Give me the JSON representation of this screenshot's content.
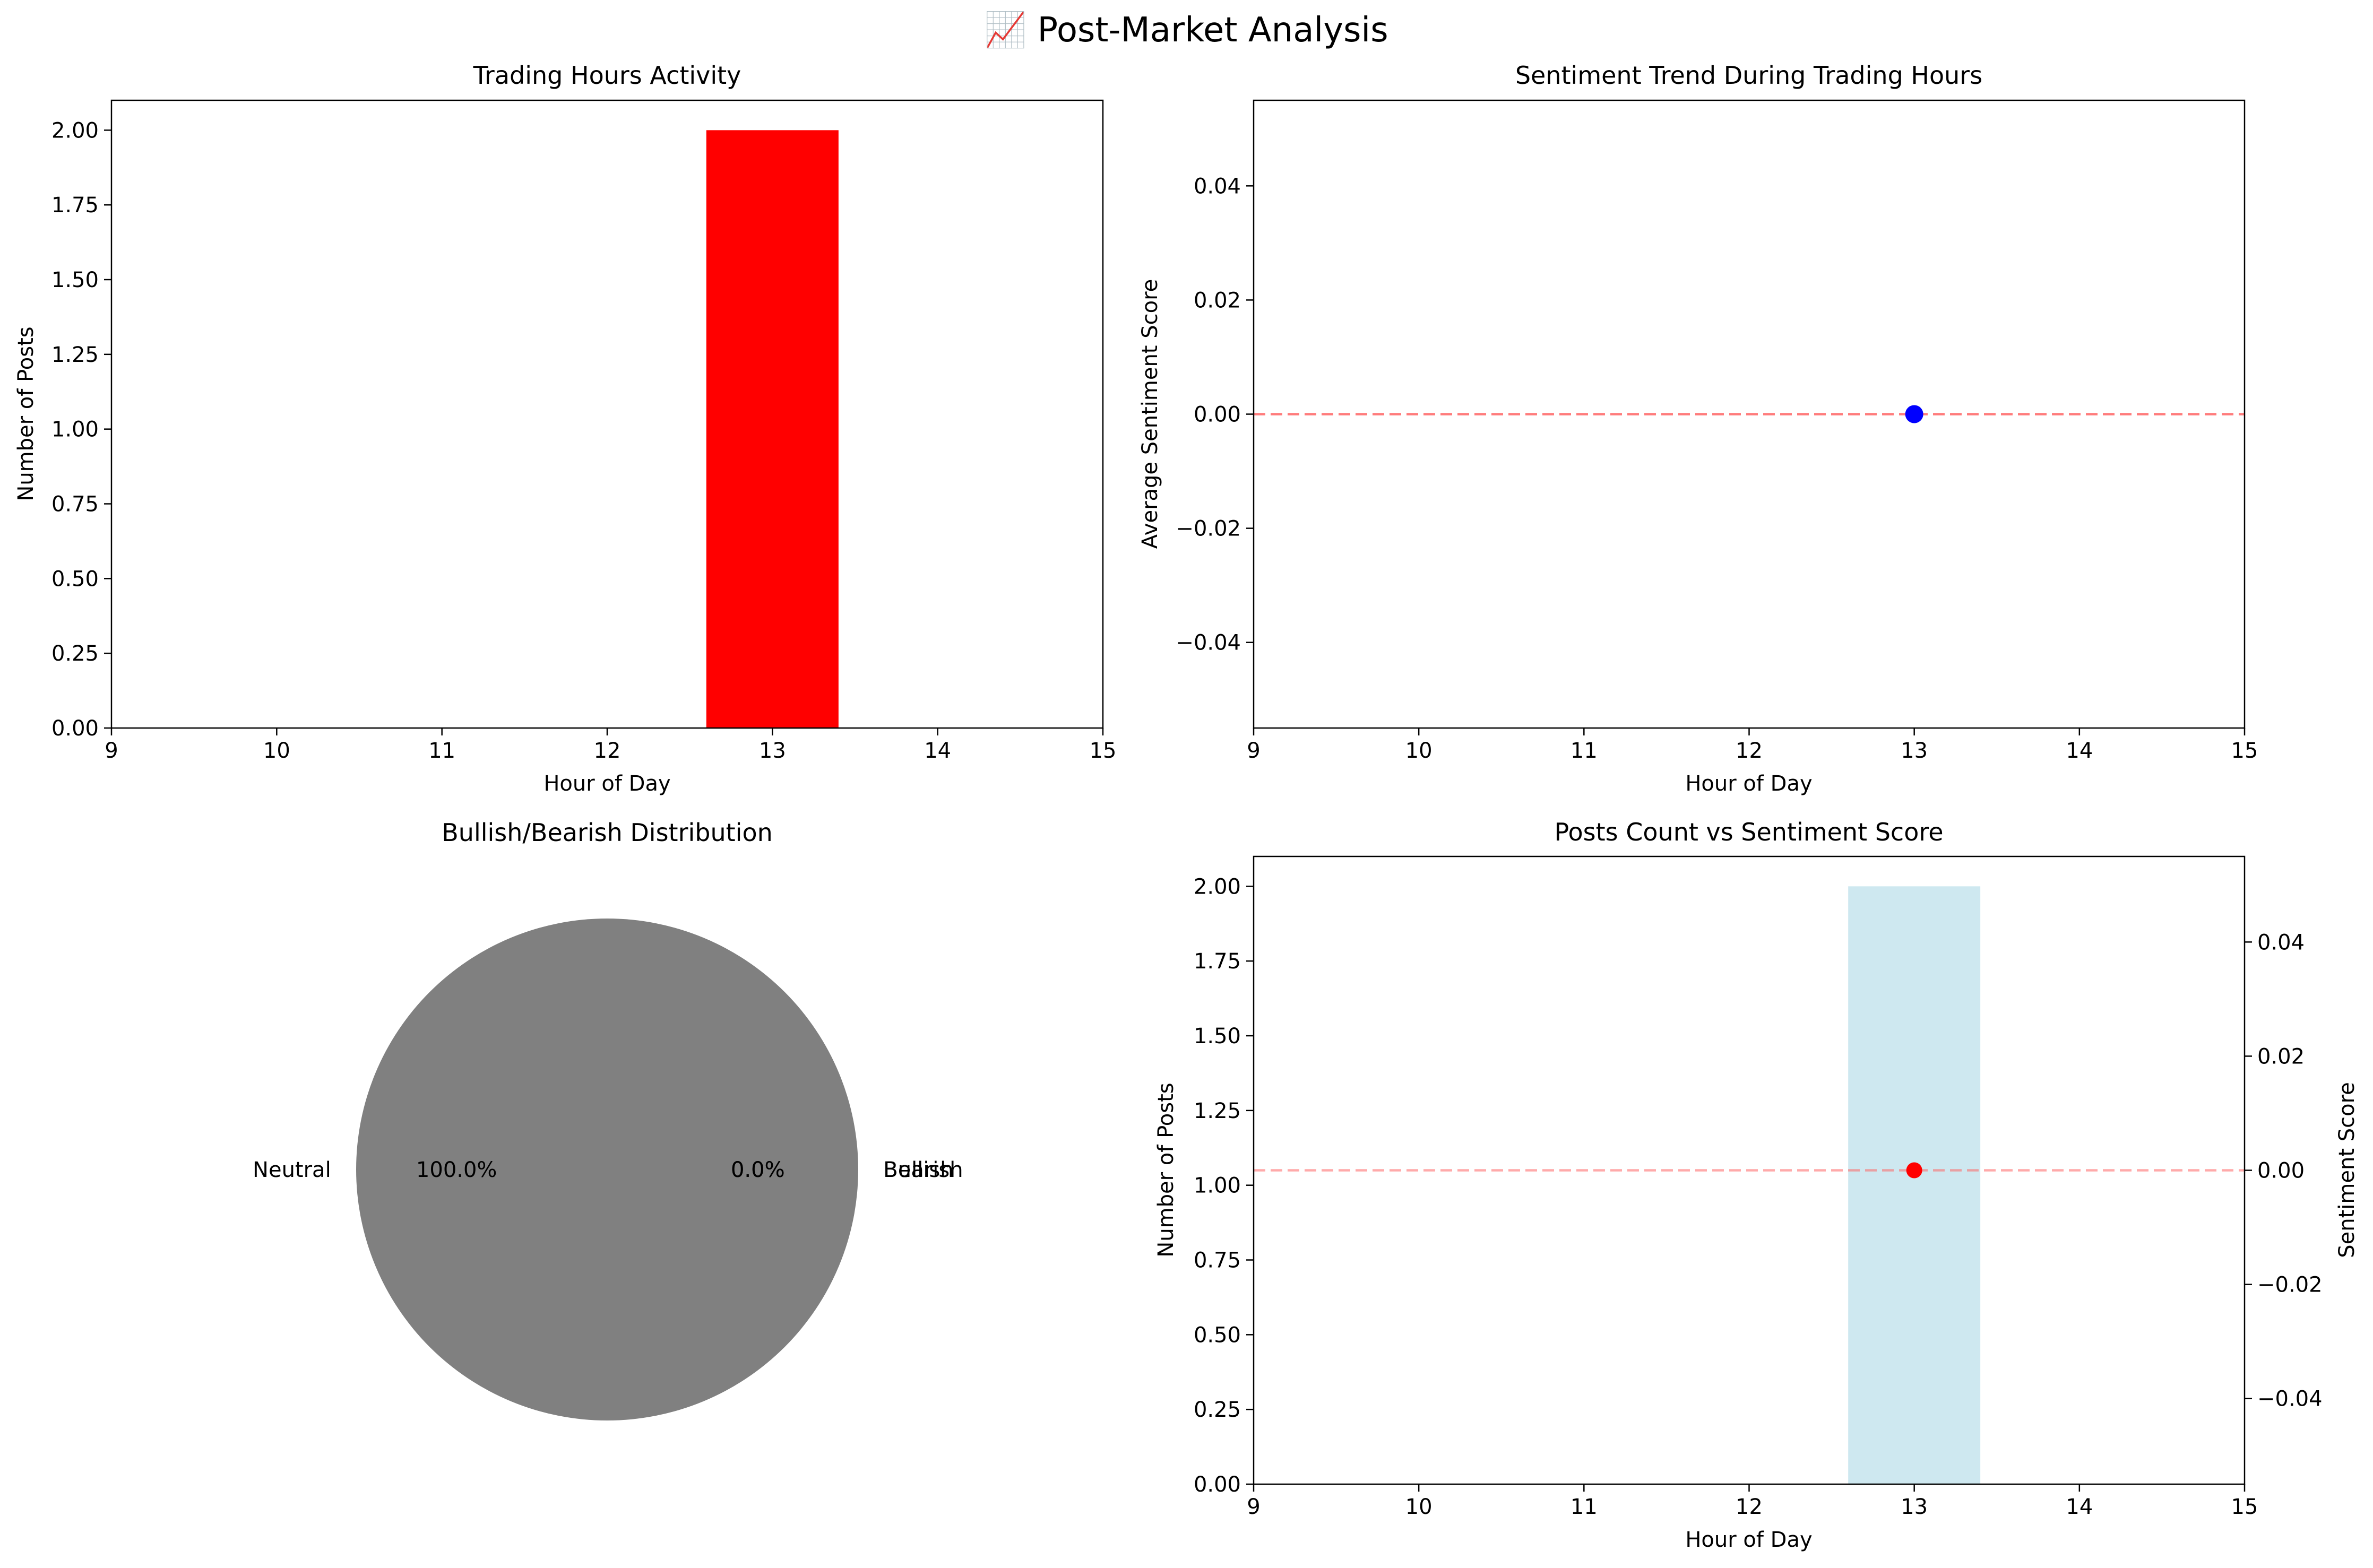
{
  "suptitle": "📈 Post-Market Analysis",
  "colors": {
    "bar_red": "#ff0000",
    "dot_blue": "#0000ff",
    "ref_line": "#ff6666",
    "light_bar": "#add8e6",
    "pie_gray": "#808080",
    "axis_blue": "#0000ff",
    "axis_red": "#ff0000"
  },
  "chart_data": [
    {
      "type": "bar",
      "title": "Trading Hours Activity",
      "xlabel": "Hour of Day",
      "ylabel": "Number of Posts",
      "x": [
        13
      ],
      "values": [
        2
      ],
      "xlim": [
        9,
        15
      ],
      "ylim": [
        0,
        2.1
      ],
      "xticks": [
        "9",
        "10",
        "11",
        "12",
        "13",
        "14",
        "15"
      ],
      "yticks": [
        "0.00",
        "0.25",
        "0.50",
        "0.75",
        "1.00",
        "1.25",
        "1.50",
        "1.75",
        "2.00"
      ]
    },
    {
      "type": "line",
      "title": "Sentiment Trend During Trading Hours",
      "xlabel": "Hour of Day",
      "ylabel": "Average Sentiment Score",
      "x": [
        13
      ],
      "y": [
        0.0
      ],
      "reference_line_y": 0,
      "xlim": [
        9,
        15
      ],
      "ylim": [
        -0.055,
        0.055
      ],
      "xticks": [
        "9",
        "10",
        "11",
        "12",
        "13",
        "14",
        "15"
      ],
      "yticks": [
        "−0.04",
        "−0.02",
        "0.00",
        "0.02",
        "0.04"
      ]
    },
    {
      "type": "pie",
      "title": "Bullish/Bearish Distribution",
      "labels": [
        "Neutral",
        "Bullish",
        "Bearish"
      ],
      "values": [
        100.0,
        0.0,
        0.0
      ],
      "pct_labels": [
        "100.0%",
        "0.0%",
        "0.0%"
      ]
    },
    {
      "type": "bar",
      "title": "Posts Count vs Sentiment Score",
      "xlabel": "Hour of Day",
      "ylabel": "Number of Posts",
      "ylabel_right": "Sentiment Score",
      "x": [
        13
      ],
      "values": [
        2
      ],
      "sentiment_x": [
        13
      ],
      "sentiment_y": [
        0.0
      ],
      "reference_line_y": 0,
      "xlim": [
        9,
        15
      ],
      "ylim": [
        0,
        2.1
      ],
      "ylim_right": [
        -0.055,
        0.055
      ],
      "xticks": [
        "9",
        "10",
        "11",
        "12",
        "13",
        "14",
        "15"
      ],
      "yticks": [
        "0.00",
        "0.25",
        "0.50",
        "0.75",
        "1.00",
        "1.25",
        "1.50",
        "1.75",
        "2.00"
      ],
      "yticks_right": [
        "−0.04",
        "−0.02",
        "0.00",
        "0.02",
        "0.04"
      ]
    }
  ]
}
